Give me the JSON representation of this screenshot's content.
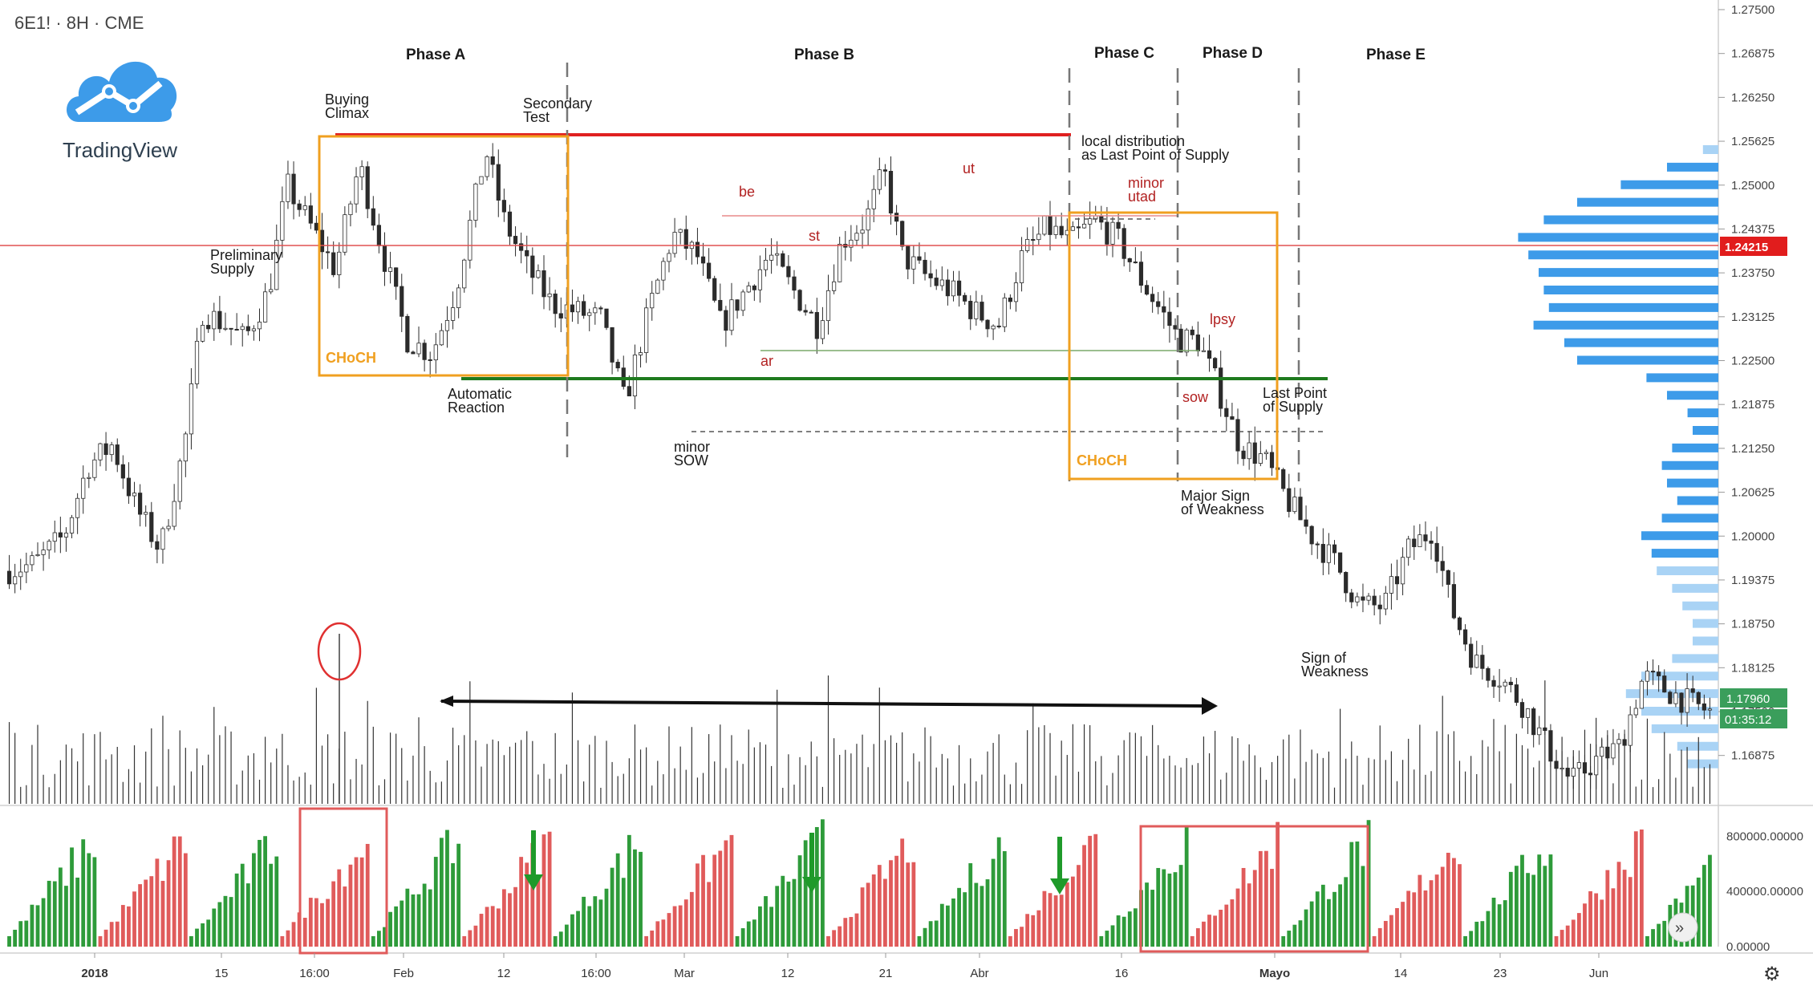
{
  "header": {
    "symbol": "6E1! · 8H · CME",
    "brand": "TradingView"
  },
  "colors": {
    "up": "#2e9b3a",
    "down": "#e05b5b",
    "resistance": "#e02020",
    "support": "#1e7a1e",
    "box": "#f0a020",
    "volume_profile": "#3d9be9",
    "price_tag": "#e11d1d",
    "green_tag": "#3a9e5b"
  },
  "chart_data": {
    "type": "candlestick",
    "title": "",
    "ylim": [
      1.163,
      1.275
    ],
    "x_ticks": [
      "2018",
      "15",
      "16:00",
      "Feb",
      "12",
      "16:00",
      "Mar",
      "12",
      "21",
      "Abr",
      "16",
      "Mayo",
      "14",
      "23",
      "Jun"
    ],
    "y_ticks": [
      "1.27500",
      "1.26875",
      "1.26250",
      "1.25625",
      "1.25000",
      "1.24375",
      "1.23750",
      "1.23125",
      "1.22500",
      "1.21875",
      "1.21250",
      "1.20625",
      "1.20000",
      "1.19375",
      "1.18750",
      "1.18125",
      "1.17500",
      "1.16875"
    ],
    "price_tags": {
      "current": "1.24215",
      "last": "1.17960",
      "timer": "01:35:12"
    },
    "price_path": [
      [
        0,
        1.195
      ],
      [
        5,
        1.196
      ],
      [
        10,
        1.2
      ],
      [
        14,
        1.21
      ],
      [
        18,
        1.213
      ],
      [
        22,
        1.204
      ],
      [
        26,
        1.198
      ],
      [
        30,
        1.213
      ],
      [
        33,
        1.232
      ],
      [
        37,
        1.23
      ],
      [
        40,
        1.228
      ],
      [
        44,
        1.235
      ],
      [
        47,
        1.25
      ],
      [
        51,
        1.244
      ],
      [
        55,
        1.238
      ],
      [
        59,
        1.253
      ],
      [
        63,
        1.24
      ],
      [
        67,
        1.228
      ],
      [
        71,
        1.226
      ],
      [
        75,
        1.235
      ],
      [
        80,
        1.255
      ],
      [
        83,
        1.245
      ],
      [
        87,
        1.238
      ],
      [
        91,
        1.233
      ],
      [
        95,
        1.232
      ],
      [
        99,
        1.231
      ],
      [
        103,
        1.219
      ],
      [
        107,
        1.232
      ],
      [
        111,
        1.243
      ],
      [
        115,
        1.24
      ],
      [
        119,
        1.23
      ],
      [
        123,
        1.235
      ],
      [
        127,
        1.24
      ],
      [
        131,
        1.235
      ],
      [
        135,
        1.23
      ],
      [
        139,
        1.242
      ],
      [
        143,
        1.245
      ],
      [
        146,
        1.252
      ],
      [
        149,
        1.24
      ],
      [
        153,
        1.237
      ],
      [
        157,
        1.235
      ],
      [
        161,
        1.232
      ],
      [
        165,
        1.23
      ],
      [
        169,
        1.24
      ],
      [
        173,
        1.244
      ],
      [
        177,
        1.242
      ],
      [
        181,
        1.245
      ],
      [
        185,
        1.242
      ],
      [
        189,
        1.236
      ],
      [
        192,
        1.232
      ],
      [
        195,
        1.228
      ],
      [
        198,
        1.228
      ],
      [
        201,
        1.222
      ],
      [
        205,
        1.213
      ],
      [
        209,
        1.211
      ],
      [
        213,
        1.205
      ],
      [
        217,
        1.2
      ],
      [
        221,
        1.196
      ],
      [
        225,
        1.19
      ],
      [
        229,
        1.19
      ],
      [
        233,
        1.198
      ],
      [
        237,
        1.201
      ],
      [
        240,
        1.19
      ],
      [
        244,
        1.182
      ],
      [
        248,
        1.18
      ],
      [
        252,
        1.176
      ],
      [
        256,
        1.17
      ],
      [
        260,
        1.165
      ],
      [
        264,
        1.168
      ],
      [
        268,
        1.17
      ],
      [
        272,
        1.18
      ],
      [
        276,
        1.178
      ],
      [
        280,
        1.176
      ],
      [
        283,
        1.175
      ]
    ],
    "volume_ylim": [
      0,
      1000000
    ],
    "volume_ticks": [
      "800000.00000",
      "400000.00000",
      "0.00000"
    ],
    "volume_profile_prices": [
      1.255,
      1.2525,
      1.25,
      1.2475,
      1.245,
      1.2425,
      1.24,
      1.2375,
      1.235,
      1.2325,
      1.23,
      1.2275,
      1.225,
      1.2225,
      1.22,
      1.2175,
      1.215,
      1.2125,
      1.21,
      1.2075,
      1.205,
      1.2025,
      1.2,
      1.1975,
      1.195,
      1.1925,
      1.19,
      1.1875,
      1.185,
      1.1825,
      1.18,
      1.1775,
      1.175,
      1.1725,
      1.17,
      1.1675
    ],
    "volume_profile_sizes": [
      0.06,
      0.2,
      0.38,
      0.55,
      0.68,
      0.78,
      0.74,
      0.7,
      0.68,
      0.66,
      0.72,
      0.6,
      0.55,
      0.28,
      0.2,
      0.12,
      0.1,
      0.18,
      0.22,
      0.2,
      0.16,
      0.22,
      0.3,
      0.26,
      0.24,
      0.18,
      0.14,
      0.1,
      0.1,
      0.18,
      0.3,
      0.36,
      0.3,
      0.26,
      0.16,
      0.12
    ],
    "phases": [
      "Phase A",
      "Phase B",
      "Phase C",
      "Phase D",
      "Phase E"
    ],
    "levels": {
      "resistance": 1.2565,
      "support": 1.2235,
      "local_dist": 1.2455,
      "red_line": 1.2422,
      "green_upper": 1.228,
      "dashed_low": 1.217,
      "dashed_top": 1.245
    },
    "annotations": {
      "buying_climax": [
        "Buying",
        "Climax"
      ],
      "secondary_test": [
        "Secondary",
        "Test"
      ],
      "preliminary_supply": [
        "Preliminary",
        "Supply"
      ],
      "automatic_reaction": [
        "Automatic",
        "Reaction"
      ],
      "minor_sow": [
        "minor",
        "SOW"
      ],
      "local_distribution": [
        "local distribution",
        "as Last Point of Supply"
      ],
      "minor_utad": [
        "minor",
        "utad"
      ],
      "lpsy": "lpsy",
      "sow": "sow",
      "last_point_of_supply": [
        "Last Point",
        "of Supply"
      ],
      "major_sign": [
        "Major Sign",
        "of Weakness"
      ],
      "sign_of_weakness": [
        "Sign of",
        "Weakness"
      ],
      "be": "be",
      "st": "st",
      "ut": "ut",
      "ar": "ar",
      "choch": "CHoCH"
    }
  }
}
